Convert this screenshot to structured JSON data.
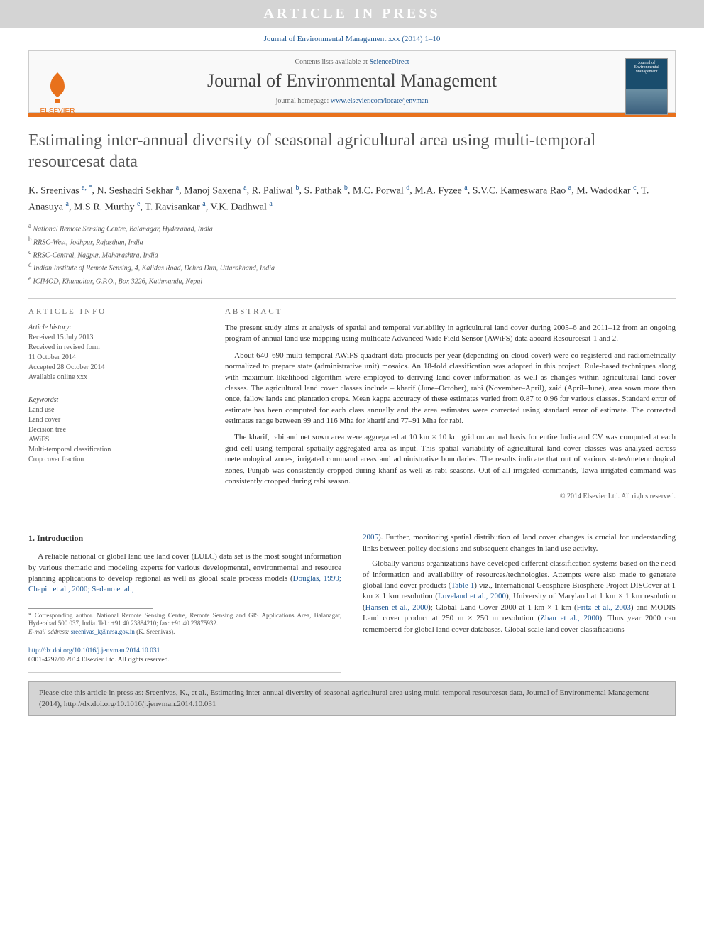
{
  "banner": {
    "text": "ARTICLE IN PRESS"
  },
  "journal_ref": {
    "text": "Journal of Environmental Management xxx (2014) 1–10"
  },
  "header": {
    "contents_prefix": "Contents lists available at ",
    "contents_link": "ScienceDirect",
    "journal_title": "Journal of Environmental Management",
    "homepage_prefix": "journal homepage: ",
    "homepage_url": "www.elsevier.com/locate/jenvman",
    "elsevier_text": "ELSEVIER",
    "cover_text": "Journal of Environmental Management"
  },
  "colors": {
    "accent": "#e8711c",
    "link": "#1a5490",
    "banner_bg": "#d4d4d4"
  },
  "article": {
    "title": "Estimating inter-annual diversity of seasonal agricultural area using multi-temporal resourcesat data",
    "authors_html": "K. Sreenivas <sup>a, *</sup>, N. Seshadri Sekhar <sup>a</sup>, Manoj Saxena <sup>a</sup>, R. Paliwal <sup>b</sup>, S. Pathak <sup>b</sup>, M.C. Porwal <sup>d</sup>, M.A. Fyzee <sup>a</sup>, S.V.C. Kameswara Rao <sup>a</sup>, M. Wadodkar <sup>c</sup>, T. Anasuya <sup>a</sup>, M.S.R. Murthy <sup>e</sup>, T. Ravisankar <sup>a</sup>, V.K. Dadhwal <sup>a</sup>",
    "affiliations": [
      "a National Remote Sensing Centre, Balanagar, Hyderabad, India",
      "b RRSC-West, Jodhpur, Rajasthan, India",
      "c RRSC-Central, Nagpur, Maharashtra, India",
      "d Indian Institute of Remote Sensing, 4, Kalidas Road, Dehra Dun, Uttarakhand, India",
      "e ICIMOD, Khumaltar, G.P.O., Box 3226, Kathmandu, Nepal"
    ]
  },
  "article_info": {
    "head": "ARTICLE INFO",
    "history_label": "Article history:",
    "history": [
      "Received 15 July 2013",
      "Received in revised form",
      "11 October 2014",
      "Accepted 28 October 2014",
      "Available online xxx"
    ],
    "keywords_label": "Keywords:",
    "keywords": [
      "Land use",
      "Land cover",
      "Decision tree",
      "AWiFS",
      "Multi-temporal classification",
      "Crop cover fraction"
    ]
  },
  "abstract": {
    "head": "ABSTRACT",
    "paragraphs": [
      "The present study aims at analysis of spatial and temporal variability in agricultural land cover during 2005–6 and 2011–12 from an ongoing program of annual land use mapping using multidate Advanced Wide Field Sensor (AWiFS) data aboard Resourcesat-1 and 2.",
      "About 640–690 multi-temporal AWiFS quadrant data products per year (depending on cloud cover) were co-registered and radiometrically normalized to prepare state (administrative unit) mosaics. An 18-fold classification was adopted in this project. Rule-based techniques along with maximum-likelihood algorithm were employed to deriving land cover information as well as changes within agricultural land cover classes. The agricultural land cover classes include – kharif (June–October), rabi (November–April), zaid (April–June), area sown more than once, fallow lands and plantation crops. Mean kappa accuracy of these estimates varied from 0.87 to 0.96 for various classes. Standard error of estimate has been computed for each class annually and the area estimates were corrected using standard error of estimate. The corrected estimates range between 99 and 116 Mha for kharif and 77–91 Mha for rabi.",
      "The kharif, rabi and net sown area were aggregated at 10 km × 10 km grid on annual basis for entire India and CV was computed at each grid cell using temporal spatially-aggregated area as input. This spatial variability of agricultural land cover classes was analyzed across meteorological zones, irrigated command areas and administrative boundaries. The results indicate that out of various states/meteorological zones, Punjab was consistently cropped during kharif as well as rabi seasons. Out of all irrigated commands, Tawa irrigated command was consistently cropped during rabi season."
    ],
    "copyright": "© 2014 Elsevier Ltd. All rights reserved."
  },
  "intro": {
    "head": "1. Introduction",
    "left_p1": "A reliable national or global land use land cover (LULC) data set is the most sought information by various thematic and modeling experts for various developmental, environmental and resource planning applications to develop regional as well as global scale process models (",
    "left_ref1": "Douglas, 1999; Chapin et al., 2000; Sedano et al.,",
    "right_ref_cont": "2005",
    "right_p1": "). Further, monitoring spatial distribution of land cover changes is crucial for understanding links between policy decisions and subsequent changes in land use activity.",
    "right_p2_a": "Globally various organizations have developed different classification systems based on the need of information and availability of resources/technologies. Attempts were also made to generate global land cover products (",
    "right_table_ref": "Table 1",
    "right_p2_b": ") viz., International Geosphere Biosphere Project DISCover at 1 km × 1 km resolution (",
    "right_ref2": "Loveland et al., 2000",
    "right_p2_c": "), University of Maryland at 1 km × 1 km resolution (",
    "right_ref3": "Hansen et al., 2000",
    "right_p2_d": "); Global Land Cover 2000 at 1 km × 1 km (",
    "right_ref4": "Fritz et al., 2003",
    "right_p2_e": ") and MODIS Land cover product at 250 m × 250 m resolution (",
    "right_ref5": "Zhan et al., 2000",
    "right_p2_f": "). Thus year 2000 can remembered for global land cover databases. Global scale land cover classifications"
  },
  "footnote": {
    "corr": "* Corresponding author. National Remote Sensing Centre, Remote Sensing and GIS Applications Area, Balanagar, Hyderabad 500 037, India. Tel.: +91 40 23884210; fax: +91 40 23875932.",
    "email_label": "E-mail address: ",
    "email": "sreenivas_k@nrsa.gov.in",
    "email_who": " (K. Sreenivas)."
  },
  "doi": {
    "url": "http://dx.doi.org/10.1016/j.jenvman.2014.10.031",
    "issn": "0301-4797/© 2014 Elsevier Ltd. All rights reserved."
  },
  "cite_box": {
    "text": "Please cite this article in press as: Sreenivas, K., et al., Estimating inter-annual diversity of seasonal agricultural area using multi-temporal resourcesat data, Journal of Environmental Management (2014), http://dx.doi.org/10.1016/j.jenvman.2014.10.031"
  }
}
